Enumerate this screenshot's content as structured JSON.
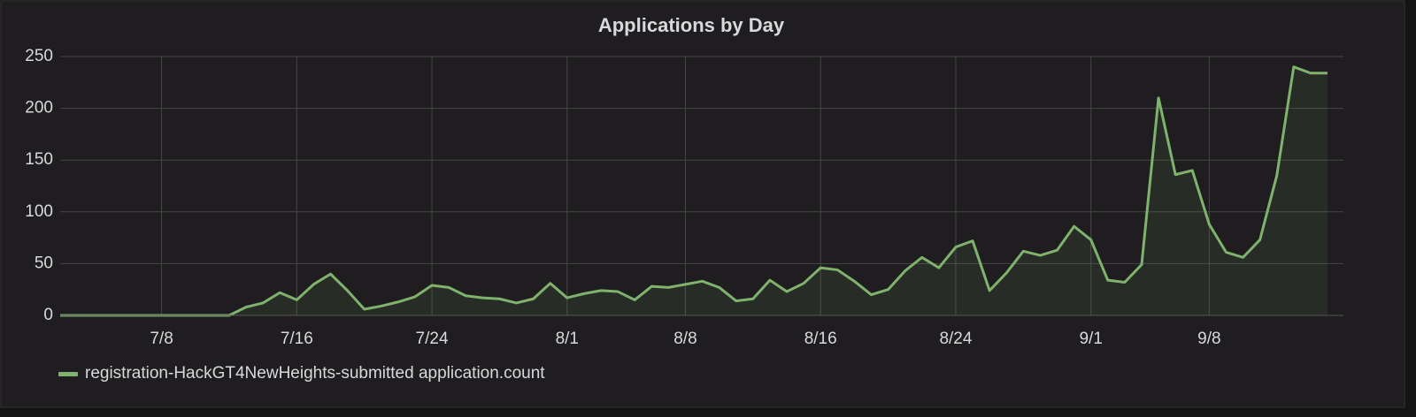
{
  "chart_data": {
    "type": "line",
    "title": "Applications by Day",
    "categories": [
      null,
      null,
      null,
      null,
      null,
      null,
      "7/8",
      null,
      null,
      null,
      null,
      null,
      null,
      null,
      "7/16",
      null,
      null,
      null,
      null,
      null,
      null,
      null,
      "7/24",
      null,
      null,
      null,
      null,
      null,
      null,
      null,
      "8/1",
      null,
      null,
      null,
      null,
      null,
      null,
      "8/8",
      null,
      null,
      null,
      null,
      null,
      null,
      null,
      "8/16",
      null,
      null,
      null,
      null,
      null,
      null,
      null,
      "8/24",
      null,
      null,
      null,
      null,
      null,
      null,
      null,
      "9/1",
      null,
      null,
      null,
      null,
      null,
      null,
      "9/8",
      null,
      null,
      null,
      null,
      null,
      null,
      null
    ],
    "series": [
      {
        "name": "registration-HackGT4NewHeights-submitted application.count",
        "color": "#7eb26d",
        "values": [
          0,
          0,
          0,
          0,
          0,
          0,
          0,
          0,
          0,
          0,
          0,
          8,
          12,
          22,
          15,
          30,
          40,
          24,
          6,
          9,
          13,
          18,
          29,
          27,
          19,
          17,
          16,
          12,
          16,
          31,
          17,
          21,
          24,
          23,
          15,
          28,
          27,
          30,
          33,
          27,
          14,
          16,
          34,
          23,
          31,
          46,
          44,
          33,
          20,
          25,
          43,
          56,
          46,
          66,
          72,
          24,
          41,
          62,
          58,
          63,
          86,
          73,
          34,
          32,
          49,
          210,
          136,
          140,
          88,
          61,
          56,
          73,
          135,
          240,
          234,
          234
        ]
      }
    ],
    "ylim": [
      0,
      250
    ],
    "yticks": [
      0,
      50,
      100,
      150,
      200,
      250
    ],
    "grid": true,
    "legend": "bottom-left"
  }
}
